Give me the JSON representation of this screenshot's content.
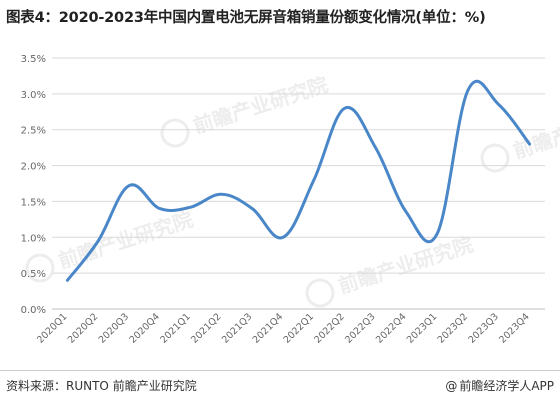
{
  "title": "图表4：2020-2023年中国内置电池无屏音箱销量份额变化情况(单位：%)",
  "source": "资料来源：RUNTO 前瞻产业研究院",
  "credit": "前瞻经济学人APP",
  "watermark_text": "前瞻产业研究院",
  "colors": {
    "line": "#4a87c8",
    "grid": "#d9d9d9",
    "axis_text": "#666666"
  },
  "chart_data": {
    "type": "line",
    "title": "图表4：2020-2023年中国内置电池无屏音箱销量份额变化情况(单位：%)",
    "xlabel": "",
    "ylabel": "",
    "categories": [
      "2020Q1",
      "2020Q2",
      "2020Q3",
      "2020Q4",
      "2021Q1",
      "2021Q2",
      "2021Q3",
      "2021Q4",
      "2022Q1",
      "2022Q2",
      "2022Q3",
      "2022Q4",
      "2023Q1",
      "2023Q2",
      "2023Q3",
      "2023Q4"
    ],
    "values": [
      0.4,
      0.95,
      1.72,
      1.4,
      1.42,
      1.6,
      1.4,
      1.0,
      1.8,
      2.8,
      2.25,
      1.35,
      1.05,
      3.05,
      2.85,
      2.3
    ],
    "unit": "%",
    "ylim": [
      0,
      3.5
    ],
    "yticks": [
      "0.0%",
      "0.5%",
      "1.0%",
      "1.5%",
      "2.0%",
      "2.5%",
      "3.0%",
      "3.5%"
    ],
    "smooth": true,
    "grid": true,
    "legend": "none"
  }
}
